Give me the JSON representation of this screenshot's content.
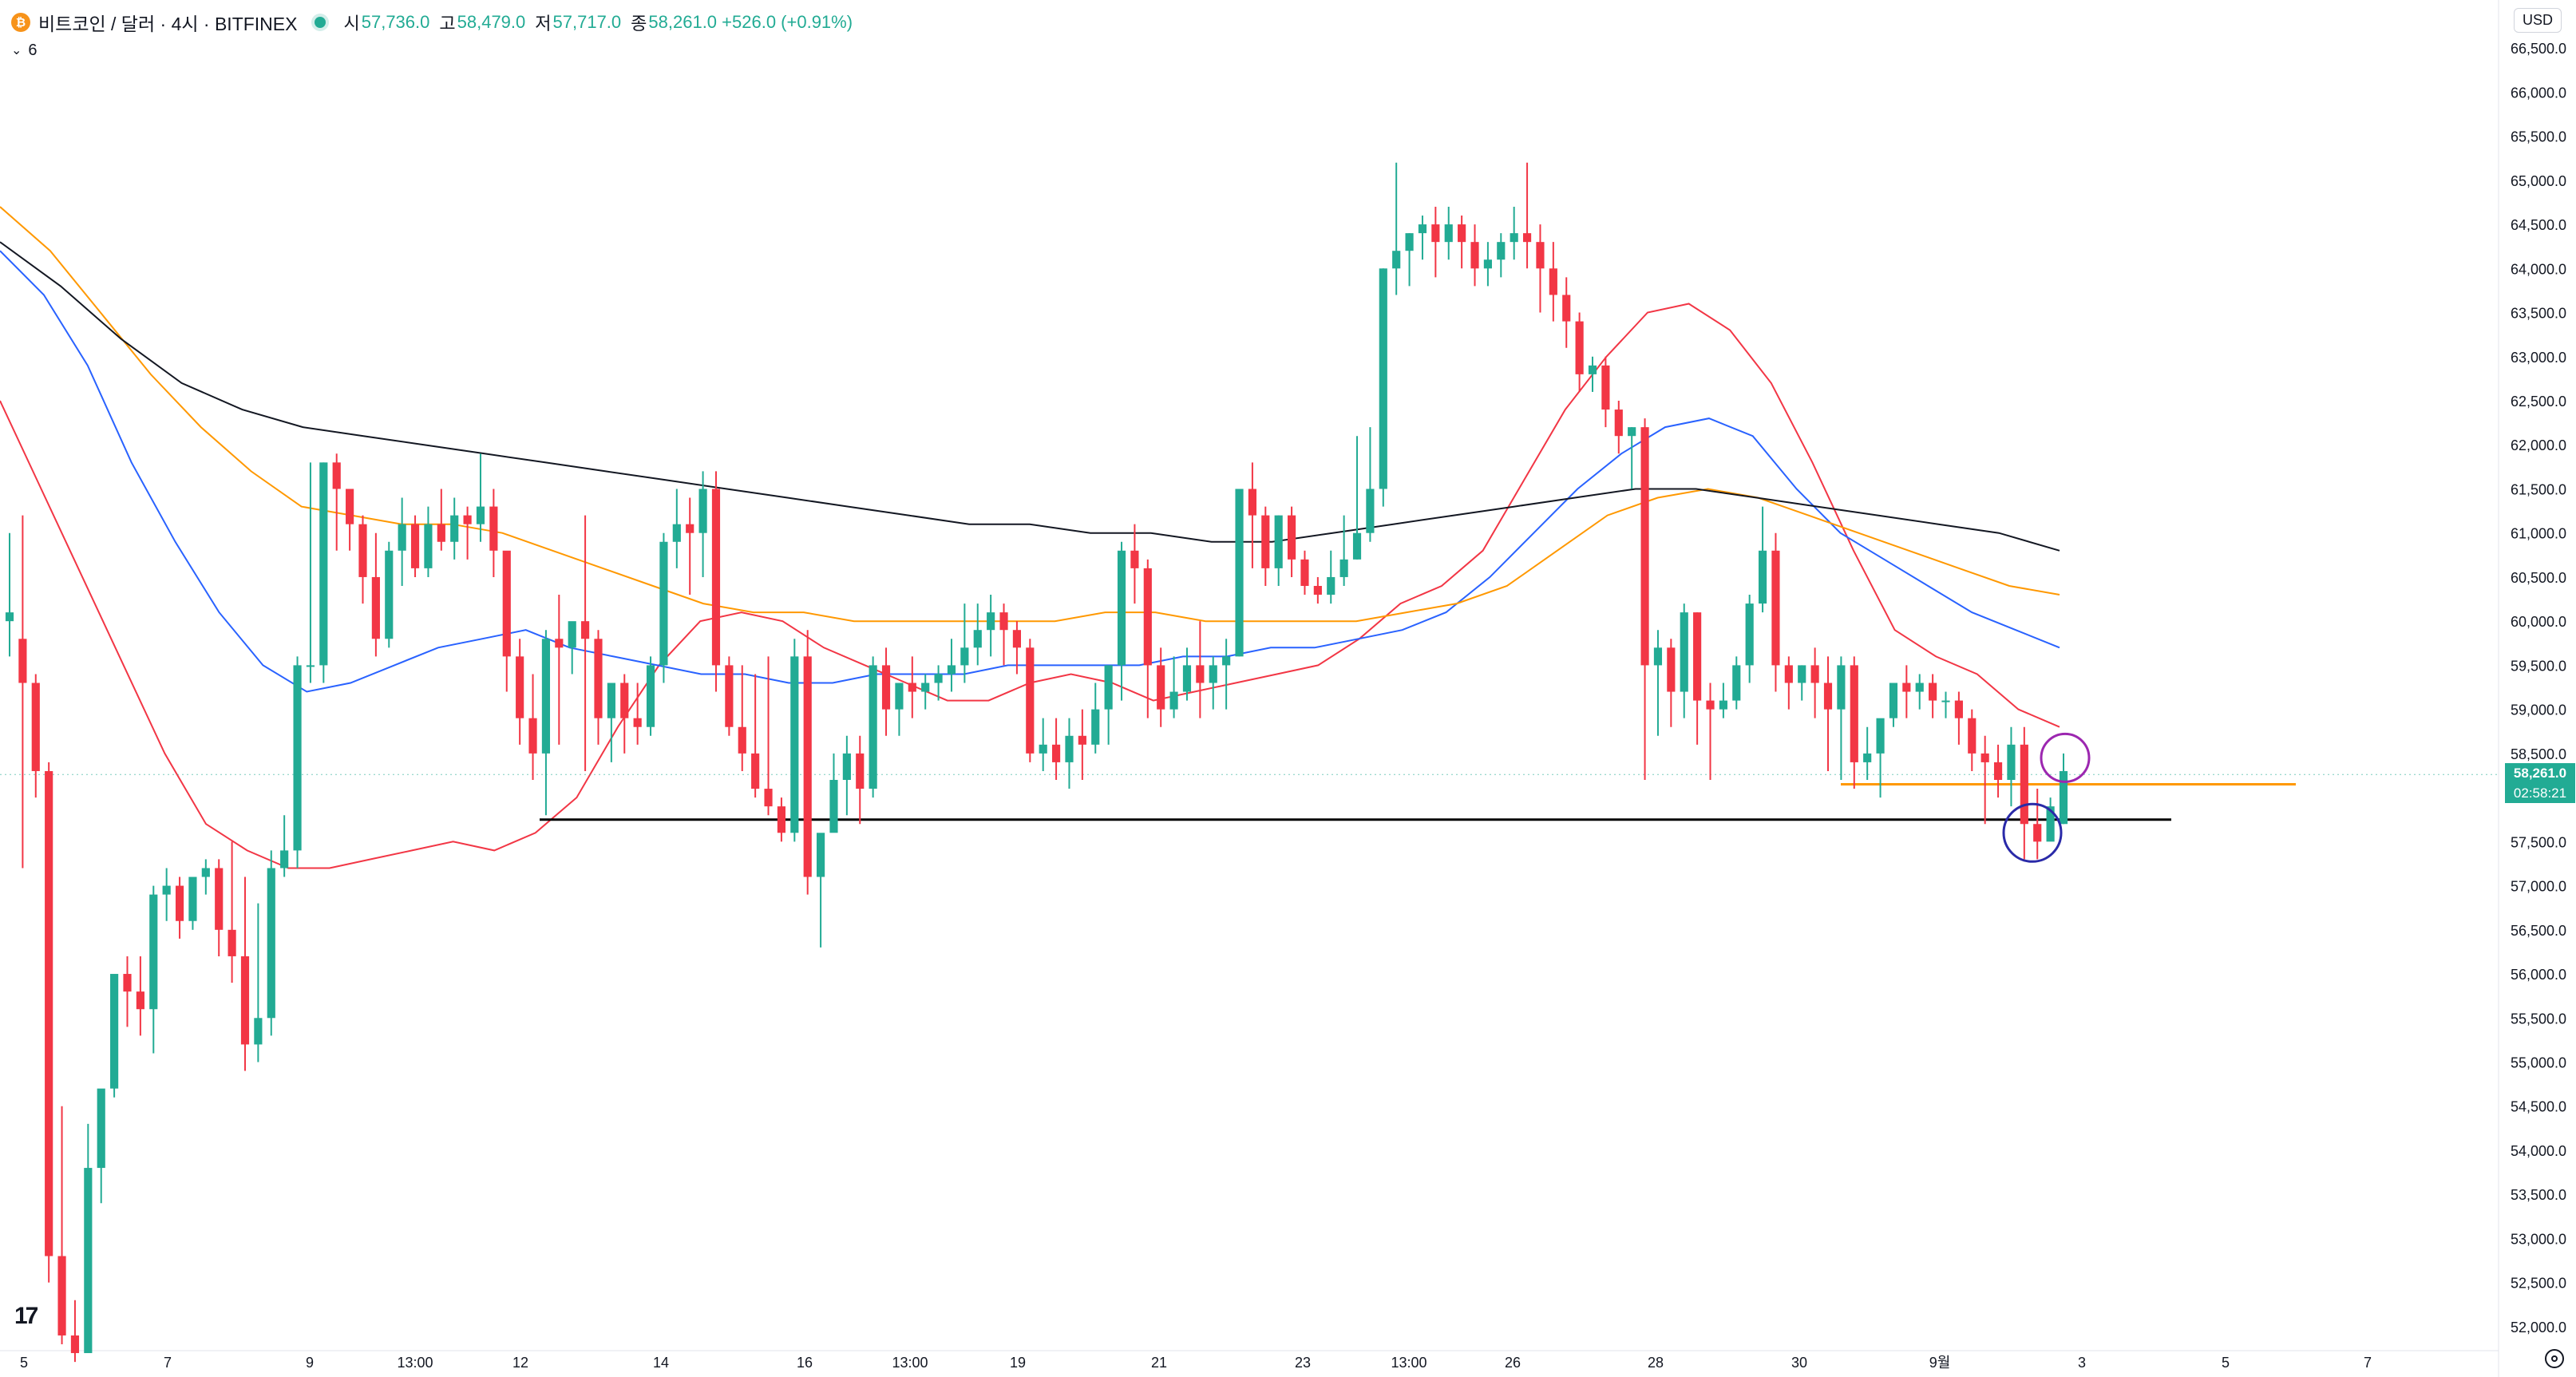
{
  "header": {
    "coin_icon": "bitcoin-icon",
    "symbol": "비트코인 / 달러 · 4시 · BITFINEX",
    "ohlc": [
      {
        "label": "시",
        "value": "57,736.0"
      },
      {
        "label": "고",
        "value": "58,479.0"
      },
      {
        "label": "저",
        "value": "57,717.0"
      },
      {
        "label": "종",
        "value": "58,261.0 +526.0 (+0.91%)"
      }
    ]
  },
  "indicator": {
    "count": "6"
  },
  "currency_button": "USD",
  "last_price": {
    "price": "58,261.0",
    "countdown": "02:58:21"
  },
  "colors": {
    "up": "#22ab94",
    "down": "#f23645",
    "ma_short": "#f23645",
    "ma_mid": "#2962ff",
    "ma_long": "#ff9800",
    "ma_longest": "#131722",
    "orange_level": "#ff9800",
    "support_line": "#000000",
    "circle_low": "#2a2aa8",
    "circle_high": "#9c27b0"
  },
  "chart_data": {
    "type": "candlestick",
    "exchange": "BITFINEX",
    "interval": "4시",
    "y_axis_labels": [
      "66,500.0",
      "66,000.0",
      "65,500.0",
      "65,000.0",
      "64,500.0",
      "64,000.0",
      "63,500.0",
      "63,000.0",
      "62,500.0",
      "62,000.0",
      "61,500.0",
      "61,000.0",
      "60,500.0",
      "60,000.0",
      "59,500.0",
      "59,000.0",
      "58,500.0",
      "57,500.0",
      "57,000.0",
      "56,500.0",
      "56,000.0",
      "55,500.0",
      "55,000.0",
      "54,500.0",
      "54,000.0",
      "53,500.0",
      "53,000.0",
      "52,500.0",
      "52,000.0"
    ],
    "ylim": [
      51800,
      66800
    ],
    "x_axis_labels": [
      "5",
      "7",
      "9",
      "13:00",
      "12",
      "14",
      "16",
      "13:00",
      "19",
      "21",
      "23",
      "13:00",
      "26",
      "28",
      "30",
      "9월",
      "3",
      "5",
      "7"
    ],
    "horizontal_levels": [
      {
        "name": "support",
        "value": 57750,
        "color": "#000000"
      },
      {
        "name": "resistance",
        "value": 58150,
        "color": "#ff9800"
      }
    ],
    "candles": [
      [
        60000,
        61000,
        60100,
        59600
      ],
      [
        59800,
        61200,
        59300,
        57200
      ],
      [
        59300,
        59400,
        58300,
        58000
      ],
      [
        58300,
        58400,
        52800,
        52500
      ],
      [
        52800,
        54500,
        51900,
        51800
      ],
      [
        51900,
        52300,
        51700,
        51600
      ],
      [
        51700,
        54300,
        53800,
        51800
      ],
      [
        53800,
        54500,
        54700,
        53400
      ],
      [
        54700,
        55900,
        56000,
        54600
      ],
      [
        56000,
        56200,
        55800,
        55400
      ],
      [
        55800,
        56200,
        55600,
        55300
      ],
      [
        55600,
        57000,
        56900,
        55100
      ],
      [
        56900,
        57200,
        57000,
        56600
      ],
      [
        57000,
        57100,
        56600,
        56400
      ],
      [
        56600,
        57000,
        57100,
        56500
      ],
      [
        57100,
        57300,
        57200,
        56900
      ],
      [
        57200,
        57300,
        56500,
        56200
      ],
      [
        56500,
        57500,
        56200,
        55900
      ],
      [
        56200,
        57100,
        55200,
        54900
      ],
      [
        55200,
        56800,
        55500,
        55000
      ],
      [
        55500,
        57400,
        57200,
        55300
      ],
      [
        57200,
        57800,
        57400,
        57100
      ],
      [
        57400,
        59600,
        59500,
        57200
      ],
      [
        59500,
        61800,
        59500,
        59300
      ],
      [
        59500,
        61800,
        61800,
        59300
      ],
      [
        61800,
        61900,
        61500,
        60800
      ],
      [
        61500,
        61500,
        61100,
        60800
      ],
      [
        61100,
        61200,
        60500,
        60200
      ],
      [
        60500,
        61000,
        59800,
        59600
      ],
      [
        59800,
        60900,
        60800,
        59700
      ],
      [
        60800,
        61400,
        61100,
        60400
      ],
      [
        61100,
        61200,
        60600,
        60500
      ],
      [
        60600,
        61300,
        61100,
        60500
      ],
      [
        61100,
        61500,
        60900,
        60800
      ],
      [
        60900,
        61400,
        61200,
        60700
      ],
      [
        61200,
        61300,
        61100,
        60700
      ],
      [
        61100,
        61900,
        61300,
        60900
      ],
      [
        61300,
        61500,
        60800,
        60500
      ],
      [
        60800,
        60600,
        59600,
        59200
      ],
      [
        59600,
        59800,
        58900,
        58600
      ],
      [
        58900,
        59400,
        58500,
        58200
      ],
      [
        58500,
        59900,
        59800,
        57800
      ],
      [
        59800,
        60300,
        59700,
        58600
      ],
      [
        59700,
        59900,
        60000,
        59400
      ],
      [
        60000,
        61200,
        59800,
        58300
      ],
      [
        59800,
        59900,
        58900,
        58600
      ],
      [
        58900,
        59100,
        59300,
        58400
      ],
      [
        59300,
        59400,
        58900,
        58500
      ],
      [
        58900,
        59300,
        58800,
        58600
      ],
      [
        58800,
        59600,
        59500,
        58700
      ],
      [
        59500,
        61000,
        60900,
        59300
      ],
      [
        60900,
        61500,
        61100,
        60600
      ],
      [
        61100,
        61400,
        61000,
        60300
      ],
      [
        61000,
        61700,
        61500,
        60500
      ],
      [
        61500,
        61700,
        59500,
        59200
      ],
      [
        59500,
        59600,
        58800,
        58700
      ],
      [
        58800,
        59500,
        58500,
        58300
      ],
      [
        58500,
        59400,
        58100,
        58000
      ],
      [
        58100,
        59600,
        57900,
        57800
      ],
      [
        57900,
        58000,
        57600,
        57500
      ],
      [
        57600,
        59800,
        59600,
        57500
      ],
      [
        59600,
        59900,
        57100,
        56900
      ],
      [
        57100,
        57500,
        57600,
        56300
      ],
      [
        57600,
        58500,
        58200,
        57800
      ],
      [
        58200,
        58700,
        58500,
        57800
      ],
      [
        58500,
        58700,
        58100,
        57700
      ],
      [
        58100,
        59600,
        59500,
        58000
      ],
      [
        59500,
        59700,
        59000,
        58700
      ],
      [
        59000,
        59200,
        59300,
        58700
      ],
      [
        59300,
        59600,
        59200,
        58900
      ],
      [
        59200,
        59400,
        59300,
        59000
      ],
      [
        59300,
        59500,
        59400,
        59100
      ],
      [
        59400,
        59800,
        59500,
        59200
      ],
      [
        59500,
        60200,
        59700,
        59300
      ],
      [
        59700,
        60200,
        59900,
        59500
      ],
      [
        59900,
        60300,
        60100,
        59600
      ],
      [
        60100,
        60200,
        59900,
        59500
      ],
      [
        59900,
        60000,
        59700,
        59400
      ],
      [
        59700,
        59800,
        58500,
        58400
      ],
      [
        58500,
        58900,
        58600,
        58300
      ],
      [
        58600,
        58900,
        58400,
        58200
      ],
      [
        58400,
        58900,
        58700,
        58100
      ],
      [
        58700,
        59000,
        58600,
        58200
      ],
      [
        58600,
        59300,
        59000,
        58500
      ],
      [
        59000,
        59500,
        59500,
        58600
      ],
      [
        59500,
        60900,
        60800,
        59100
      ],
      [
        60800,
        61100,
        60600,
        60200
      ],
      [
        60600,
        60700,
        59500,
        58900
      ],
      [
        59500,
        59700,
        59000,
        58800
      ],
      [
        59000,
        59600,
        59200,
        58900
      ],
      [
        59200,
        59700,
        59500,
        59100
      ],
      [
        59500,
        60000,
        59300,
        58900
      ],
      [
        59300,
        59600,
        59500,
        59000
      ],
      [
        59500,
        59800,
        59600,
        59000
      ],
      [
        59600,
        61500,
        61500,
        59600
      ],
      [
        61500,
        61800,
        61200,
        60600
      ],
      [
        61200,
        61300,
        60600,
        60400
      ],
      [
        60600,
        61200,
        61200,
        60400
      ],
      [
        61200,
        61300,
        60700,
        60500
      ],
      [
        60700,
        60800,
        60400,
        60300
      ],
      [
        60400,
        60500,
        60300,
        60200
      ],
      [
        60300,
        60800,
        60500,
        60200
      ],
      [
        60500,
        61200,
        60700,
        60400
      ],
      [
        60700,
        62100,
        61000,
        60700
      ],
      [
        61000,
        62200,
        61500,
        60900
      ],
      [
        61500,
        64000,
        64000,
        61300
      ],
      [
        64000,
        65200,
        64200,
        63700
      ],
      [
        64200,
        64400,
        64400,
        63800
      ],
      [
        64400,
        64600,
        64500,
        64100
      ],
      [
        64500,
        64700,
        64300,
        63900
      ],
      [
        64300,
        64700,
        64500,
        64100
      ],
      [
        64500,
        64600,
        64300,
        64000
      ],
      [
        64300,
        64500,
        64000,
        63800
      ],
      [
        64000,
        64300,
        64100,
        63800
      ],
      [
        64100,
        64400,
        64300,
        63900
      ],
      [
        64300,
        64700,
        64400,
        64100
      ],
      [
        64400,
        65200,
        64300,
        64000
      ],
      [
        64300,
        64500,
        64000,
        63500
      ],
      [
        64000,
        64300,
        63700,
        63400
      ],
      [
        63700,
        63900,
        63400,
        63100
      ],
      [
        63400,
        63500,
        62800,
        62600
      ],
      [
        62800,
        63000,
        62900,
        62600
      ],
      [
        62900,
        63000,
        62400,
        62200
      ],
      [
        62400,
        62500,
        62100,
        61900
      ],
      [
        62100,
        62200,
        62200,
        61500
      ],
      [
        62200,
        62300,
        59500,
        58200
      ],
      [
        59500,
        59900,
        59700,
        58700
      ],
      [
        59700,
        59800,
        59200,
        58800
      ],
      [
        59200,
        60200,
        60100,
        58900
      ],
      [
        60100,
        60100,
        59100,
        58600
      ],
      [
        59100,
        59300,
        59000,
        58200
      ],
      [
        59000,
        59300,
        59100,
        58900
      ],
      [
        59100,
        59600,
        59500,
        59000
      ],
      [
        59500,
        60300,
        60200,
        59300
      ],
      [
        60200,
        61300,
        60800,
        60100
      ],
      [
        60800,
        61000,
        59500,
        59200
      ],
      [
        59500,
        59600,
        59300,
        59000
      ],
      [
        59300,
        59500,
        59500,
        59100
      ],
      [
        59500,
        59700,
        59300,
        58900
      ],
      [
        59300,
        59600,
        59000,
        58300
      ],
      [
        59000,
        59600,
        59500,
        58200
      ],
      [
        59500,
        59600,
        58400,
        58100
      ],
      [
        58400,
        58800,
        58500,
        58200
      ],
      [
        58500,
        58800,
        58900,
        58000
      ],
      [
        58900,
        59300,
        59300,
        58800
      ],
      [
        59300,
        59500,
        59200,
        58900
      ],
      [
        59200,
        59400,
        59300,
        59000
      ],
      [
        59300,
        59400,
        59100,
        58900
      ],
      [
        59100,
        59200,
        59100,
        58900
      ],
      [
        59100,
        59200,
        58900,
        58600
      ],
      [
        58900,
        59000,
        58500,
        58300
      ],
      [
        58500,
        58700,
        58400,
        57700
      ],
      [
        58400,
        58600,
        58200,
        58000
      ],
      [
        58200,
        58800,
        58600,
        57900
      ],
      [
        58600,
        58800,
        57700,
        57300
      ],
      [
        57700,
        58100,
        57500,
        57300
      ],
      [
        57500,
        58000,
        57900,
        57600
      ],
      [
        57700,
        58500,
        58300,
        57700
      ]
    ],
    "moving_averages": [
      {
        "color": "#f23645",
        "values": [
          62500,
          61500,
          60500,
          59500,
          58500,
          57700,
          57400,
          57200,
          57200,
          57300,
          57400,
          57500,
          57400,
          57600,
          58000,
          58800,
          59500,
          60000,
          60100,
          60000,
          59700,
          59500,
          59300,
          59100,
          59100,
          59300,
          59400,
          59300,
          59100,
          59200,
          59300,
          59400,
          59500,
          59800,
          60200,
          60400,
          60800,
          61600,
          62400,
          63000,
          63500,
          63600,
          63300,
          62700,
          61800,
          60800,
          59900,
          59600,
          59400,
          59000,
          58800
        ]
      },
      {
        "color": "#2962ff",
        "values": [
          64200,
          63700,
          62900,
          61800,
          60900,
          60100,
          59500,
          59200,
          59300,
          59500,
          59700,
          59800,
          59900,
          59700,
          59600,
          59500,
          59400,
          59400,
          59300,
          59300,
          59400,
          59400,
          59400,
          59500,
          59500,
          59500,
          59500,
          59600,
          59600,
          59700,
          59700,
          59800,
          59900,
          60100,
          60500,
          61000,
          61500,
          61900,
          62200,
          62300,
          62100,
          61500,
          61000,
          60700,
          60400,
          60100,
          59900,
          59700
        ]
      },
      {
        "color": "#ff9800",
        "values": [
          64700,
          64200,
          63500,
          62800,
          62200,
          61700,
          61300,
          61200,
          61100,
          61100,
          61000,
          60800,
          60600,
          60400,
          60200,
          60100,
          60100,
          60000,
          60000,
          60000,
          60000,
          60000,
          60100,
          60100,
          60000,
          60000,
          60000,
          60000,
          60100,
          60200,
          60400,
          60800,
          61200,
          61400,
          61500,
          61400,
          61200,
          61000,
          60800,
          60600,
          60400,
          60300
        ]
      },
      {
        "color": "#131722",
        "values": [
          64300,
          63800,
          63200,
          62700,
          62400,
          62200,
          62100,
          62000,
          61900,
          61800,
          61700,
          61600,
          61500,
          61400,
          61300,
          61200,
          61100,
          61100,
          61000,
          61000,
          60900,
          60900,
          61000,
          61100,
          61200,
          61300,
          61400,
          61500,
          61500,
          61400,
          61300,
          61200,
          61100,
          61000,
          60800
        ]
      }
    ]
  }
}
